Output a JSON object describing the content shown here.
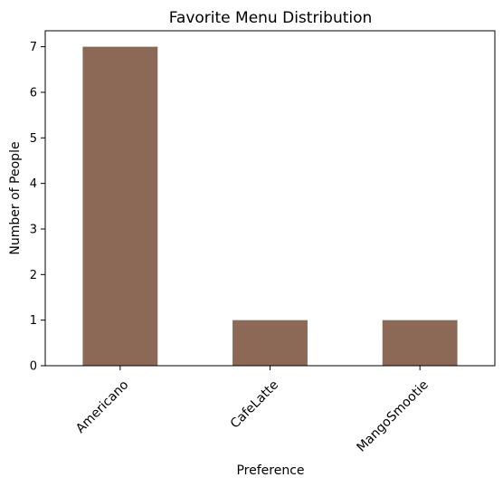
{
  "chart_data": {
    "type": "bar",
    "title": "Favorite Menu Distribution",
    "xlabel": "Preference",
    "ylabel": "Number of People",
    "categories": [
      "Americano",
      "CafeLatte",
      "MangoSmootie"
    ],
    "values": [
      7,
      1,
      1
    ],
    "ylim": [
      0,
      7.35
    ],
    "yticks": [
      "0",
      "1",
      "2",
      "3",
      "4",
      "5",
      "6",
      "7"
    ],
    "bar_color": "#8b6956",
    "grid": false,
    "xtick_rotation": "45 degrees"
  }
}
